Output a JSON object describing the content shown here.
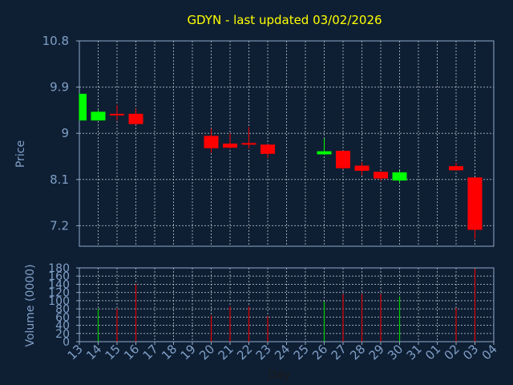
{
  "chart_data": {
    "type": "candlestick",
    "title": "GDYN - last updated 03/02/2026",
    "xlabel": "Day",
    "price_panel": {
      "ylabel": "Price",
      "ylim": [
        6.8,
        10.8
      ],
      "yticks": [
        7.2,
        8.1,
        9,
        9.9,
        10.8
      ],
      "ytick_labels": [
        "7.2",
        "8.1",
        "9",
        "9.9",
        "10.8"
      ],
      "grid": true
    },
    "volume_panel": {
      "ylabel": "Volume (0000)",
      "ylim": [
        0,
        180
      ],
      "yticks": [
        0,
        20,
        40,
        60,
        80,
        100,
        120,
        140,
        160,
        180
      ],
      "ytick_labels": [
        "0",
        "20",
        "40",
        "60",
        "80",
        "100",
        "120",
        "140",
        "160",
        "180"
      ],
      "grid": true
    },
    "x_categories": [
      "13",
      "14",
      "15",
      "16",
      "17",
      "18",
      "19",
      "20",
      "21",
      "22",
      "23",
      "24",
      "25",
      "26",
      "27",
      "28",
      "29",
      "30",
      "31",
      "01",
      "02",
      "03",
      "04"
    ],
    "candles": [
      {
        "day": "13",
        "open": 9.25,
        "high": 9.77,
        "low": 9.25,
        "close": 9.77
      },
      {
        "day": "14",
        "open": 9.25,
        "high": 9.45,
        "low": 9.25,
        "close": 9.42
      },
      {
        "day": "15",
        "open": 9.38,
        "high": 9.55,
        "low": 9.25,
        "close": 9.36
      },
      {
        "day": "16",
        "open": 9.38,
        "high": 9.48,
        "low": 9.17,
        "close": 9.18
      },
      {
        "day": "20",
        "open": 8.95,
        "high": 9.09,
        "low": 8.62,
        "close": 8.71
      },
      {
        "day": "21",
        "open": 8.8,
        "high": 9.0,
        "low": 8.7,
        "close": 8.72
      },
      {
        "day": "22",
        "open": 8.81,
        "high": 9.12,
        "low": 8.7,
        "close": 8.79
      },
      {
        "day": "23",
        "open": 8.78,
        "high": 8.79,
        "low": 8.52,
        "close": 8.6
      },
      {
        "day": "26",
        "open": 8.59,
        "high": 8.9,
        "low": 8.58,
        "close": 8.65
      },
      {
        "day": "27",
        "open": 8.66,
        "high": 8.66,
        "low": 8.3,
        "close": 8.32
      },
      {
        "day": "28",
        "open": 8.37,
        "high": 8.44,
        "low": 8.18,
        "close": 8.27
      },
      {
        "day": "29",
        "open": 8.25,
        "high": 8.26,
        "low": 8.08,
        "close": 8.12
      },
      {
        "day": "30",
        "open": 8.08,
        "high": 8.27,
        "low": 8.04,
        "close": 8.24
      },
      {
        "day": "02",
        "open": 8.36,
        "high": 8.43,
        "low": 8.27,
        "close": 8.28
      },
      {
        "day": "03",
        "open": 8.14,
        "high": 8.14,
        "low": 6.94,
        "close": 7.12
      }
    ],
    "volume": [
      {
        "day": "14",
        "value": 80,
        "color": "#00cc00"
      },
      {
        "day": "15",
        "value": 80,
        "color": "#dd0000"
      },
      {
        "day": "16",
        "value": 140,
        "color": "#dd0000"
      },
      {
        "day": "20",
        "value": 64,
        "color": "#dd0000"
      },
      {
        "day": "21",
        "value": 86,
        "color": "#dd0000"
      },
      {
        "day": "22",
        "value": 86,
        "color": "#dd0000"
      },
      {
        "day": "23",
        "value": 62,
        "color": "#dd0000"
      },
      {
        "day": "26",
        "value": 98,
        "color": "#00cc00"
      },
      {
        "day": "27",
        "value": 116,
        "color": "#dd0000"
      },
      {
        "day": "28",
        "value": 116,
        "color": "#dd0000"
      },
      {
        "day": "29",
        "value": 116,
        "color": "#dd0000"
      },
      {
        "day": "30",
        "value": 110,
        "color": "#00cc00"
      },
      {
        "day": "02",
        "value": 82,
        "color": "#dd0000"
      },
      {
        "day": "03",
        "value": 178,
        "color": "#dd0000"
      }
    ],
    "colors": {
      "background": "#0f1f33",
      "axis": "#8fa8c8",
      "grid": "#c8d0dc",
      "title": "#ffff00",
      "label": "#7f9fc8",
      "up": "#00ff00",
      "down": "#ff0000"
    }
  }
}
